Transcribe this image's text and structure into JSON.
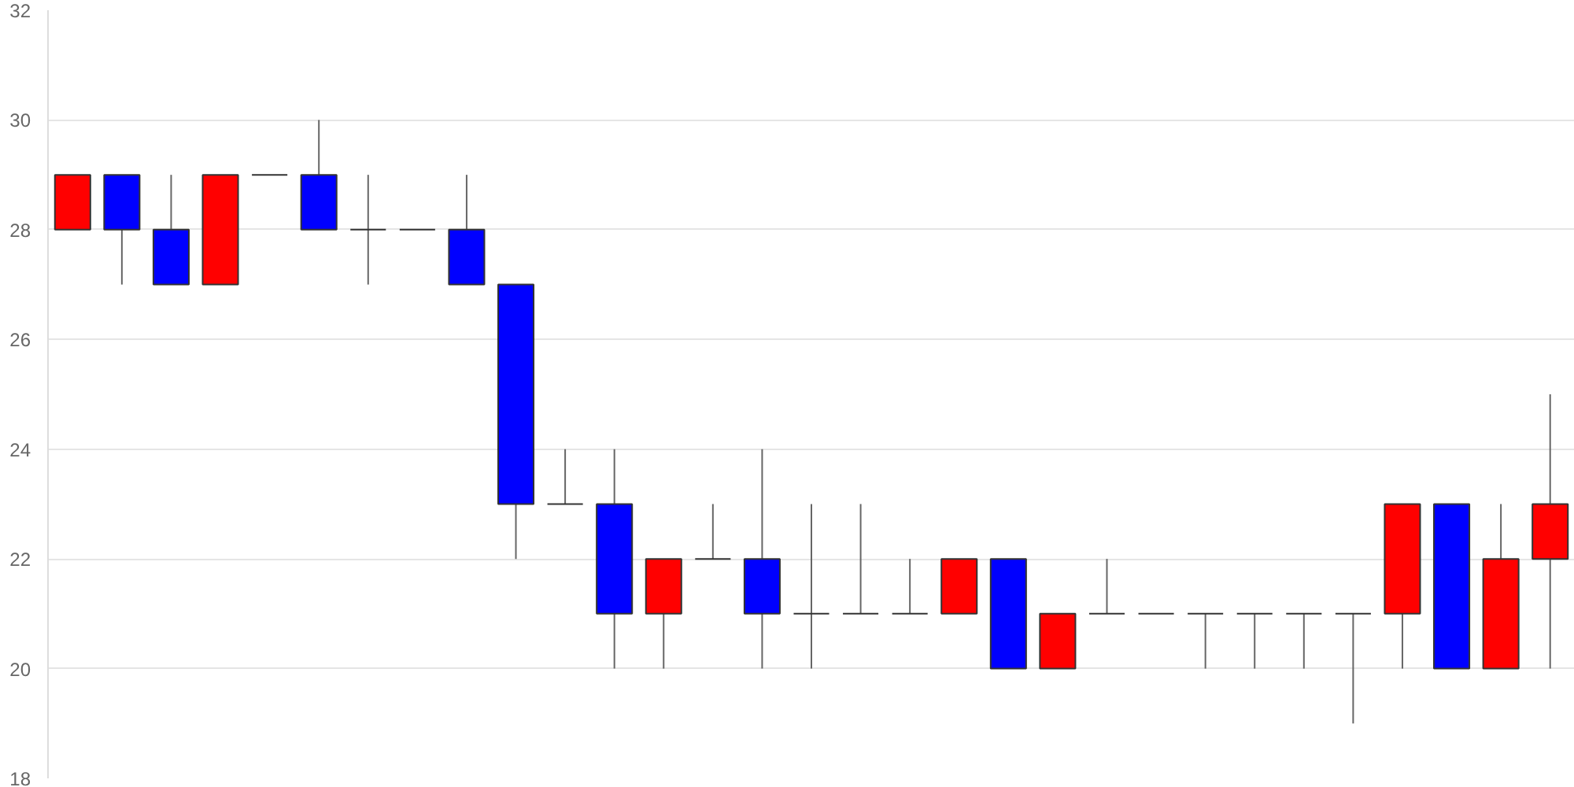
{
  "chart_data": {
    "type": "candlestick",
    "categories": [
      null,
      null,
      null,
      null,
      null,
      null,
      null,
      null,
      null,
      null,
      null,
      null,
      null,
      null,
      null,
      null,
      null,
      null,
      null,
      null,
      null,
      null,
      null,
      null,
      null,
      null,
      null,
      null,
      null,
      null,
      null
    ],
    "ohlc": [
      [
        28,
        29,
        28,
        29
      ],
      [
        29,
        29,
        27,
        28
      ],
      [
        28,
        29,
        27,
        27
      ],
      [
        27,
        29,
        27,
        29
      ],
      [
        29,
        29,
        29,
        29
      ],
      [
        29,
        30,
        28,
        28
      ],
      [
        28,
        29,
        27,
        28
      ],
      [
        28,
        28,
        28,
        28
      ],
      [
        28,
        29,
        27,
        27
      ],
      [
        27,
        27,
        22,
        23
      ],
      [
        23,
        24,
        23,
        23
      ],
      [
        23,
        24,
        20,
        21
      ],
      [
        21,
        22,
        20,
        22
      ],
      [
        22,
        23,
        22,
        22
      ],
      [
        22,
        24,
        20,
        21
      ],
      [
        21,
        23,
        20,
        21
      ],
      [
        21,
        23,
        21,
        21
      ],
      [
        21,
        22,
        21,
        21
      ],
      [
        21,
        22,
        21,
        22
      ],
      [
        22,
        22,
        20,
        20
      ],
      [
        20,
        21,
        20,
        21
      ],
      [
        21,
        22,
        21,
        21
      ],
      [
        21,
        21,
        21,
        21
      ],
      [
        21,
        21,
        20,
        21
      ],
      [
        21,
        21,
        20,
        21
      ],
      [
        21,
        21,
        20,
        21
      ],
      [
        21,
        21,
        19,
        21
      ],
      [
        21,
        23,
        20,
        23
      ],
      [
        23,
        23,
        20,
        20
      ],
      [
        20,
        23,
        20,
        22
      ],
      [
        22,
        25,
        20,
        23
      ]
    ],
    "colors": [
      "#ff0000",
      "#0000ff",
      "#0000ff",
      "#ff0000",
      "#333333",
      "#0000ff",
      "#333333",
      "#333333",
      "#0000ff",
      "#0000ff",
      "#333333",
      "#0000ff",
      "#ff0000",
      "#333333",
      "#0000ff",
      "#333333",
      "#333333",
      "#333333",
      "#ff0000",
      "#0000ff",
      "#ff0000",
      "#333333",
      "#333333",
      "#333333",
      "#333333",
      "#333333",
      "#333333",
      "#ff0000",
      "#0000ff",
      "#ff0000",
      "#ff0000"
    ],
    "ylim": [
      18,
      32
    ],
    "yticks": [
      18,
      20,
      22,
      24,
      26,
      28,
      30,
      32
    ],
    "grid": "y",
    "tick_labels": "y"
  }
}
